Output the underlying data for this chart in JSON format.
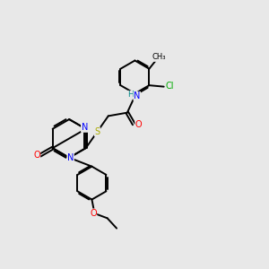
{
  "bg_color": "#e8e8e8",
  "atom_colors": {
    "N": "#0000ff",
    "O": "#ff0000",
    "S": "#aaaa00",
    "Cl": "#00aa00",
    "C": "#000000",
    "H": "#008888"
  },
  "bond_color": "#000000",
  "font_size": 7.0,
  "line_width": 1.4
}
